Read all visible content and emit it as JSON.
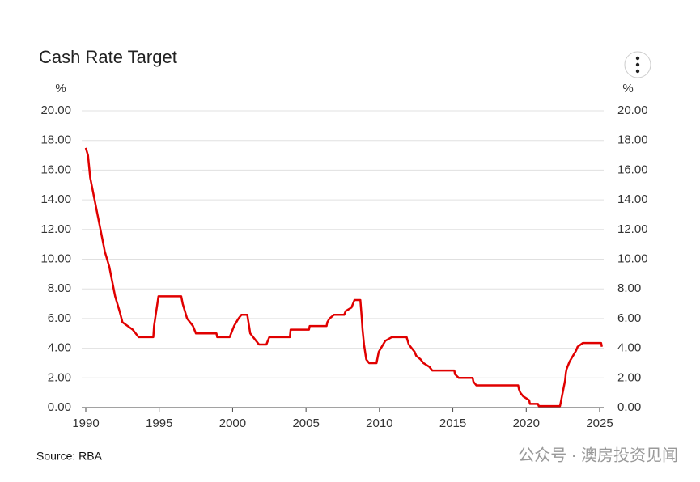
{
  "chart_data": {
    "type": "line",
    "title": "Cash Rate Target",
    "y_unit": "%",
    "y2_unit": "%",
    "source": "Source: RBA",
    "watermark": "公众号 · 澳房投资见闻",
    "xlim": [
      1990,
      2025
    ],
    "xticks": [
      1990,
      1995,
      2000,
      2005,
      2010,
      2015,
      2020,
      2025
    ],
    "ylim": [
      0,
      20
    ],
    "yticks": [
      {
        "value": 0,
        "label": "0.00"
      },
      {
        "value": 2,
        "label": "2.00"
      },
      {
        "value": 4,
        "label": "4.00"
      },
      {
        "value": 6,
        "label": "6.00"
      },
      {
        "value": 8,
        "label": "8.00"
      },
      {
        "value": 10,
        "label": "10.00"
      },
      {
        "value": 12,
        "label": "12.00"
      },
      {
        "value": 14,
        "label": "14.00"
      },
      {
        "value": 16,
        "label": "16.00"
      },
      {
        "value": 18,
        "label": "18.00"
      },
      {
        "value": 20,
        "label": "20.00"
      }
    ],
    "y2lim": [
      0,
      20
    ],
    "y2ticks": [
      {
        "value": 0,
        "label": "0.00"
      },
      {
        "value": 2,
        "label": "2.00"
      },
      {
        "value": 4,
        "label": "4.00"
      },
      {
        "value": 6,
        "label": "6.00"
      },
      {
        "value": 8,
        "label": "8.00"
      },
      {
        "value": 10,
        "label": "10.00"
      },
      {
        "value": 12,
        "label": "12.00"
      },
      {
        "value": 14,
        "label": "14.00"
      },
      {
        "value": 16,
        "label": "16.00"
      },
      {
        "value": 18,
        "label": "18.00"
      },
      {
        "value": 20,
        "label": "20.00"
      }
    ],
    "grid": true,
    "color": "#e00000",
    "x": [
      1990.0,
      1990.15,
      1990.3,
      1990.6,
      1990.8,
      1991.0,
      1991.3,
      1991.6,
      1991.8,
      1992.0,
      1992.3,
      1992.5,
      1993.2,
      1993.6,
      1994.6,
      1994.65,
      1994.8,
      1994.95,
      1996.5,
      1996.6,
      1996.9,
      1997.3,
      1997.5,
      1998.9,
      1998.95,
      1999.8,
      1999.9,
      2000.1,
      2000.4,
      2000.6,
      2001.0,
      2001.2,
      2001.6,
      2001.8,
      2002.3,
      2002.5,
      2003.9,
      2003.95,
      2005.2,
      2005.25,
      2006.4,
      2006.45,
      2006.6,
      2006.9,
      2007.6,
      2007.7,
      2008.1,
      2008.2,
      2008.3,
      2008.7,
      2008.8,
      2008.85,
      2008.95,
      2009.1,
      2009.3,
      2009.8,
      2009.9,
      2009.95,
      2010.1,
      2010.4,
      2010.85,
      2011.85,
      2012.0,
      2012.4,
      2012.5,
      2012.8,
      2013.0,
      2013.4,
      2013.6,
      2015.1,
      2015.15,
      2015.4,
      2016.35,
      2016.4,
      2016.6,
      2019.45,
      2019.5,
      2019.6,
      2019.8,
      2020.2,
      2020.25,
      2020.8,
      2020.85,
      2022.3,
      2022.35,
      2022.45,
      2022.55,
      2022.65,
      2022.7,
      2022.75,
      2022.85,
      2022.95,
      2023.1,
      2023.25,
      2023.4,
      2023.5,
      2023.85,
      2025.1,
      2025.15
    ],
    "values": [
      17.5,
      17.0,
      15.5,
      14.0,
      13.0,
      12.0,
      10.5,
      9.5,
      8.5,
      7.5,
      6.5,
      5.75,
      5.25,
      4.75,
      4.75,
      5.5,
      6.5,
      7.5,
      7.5,
      7.0,
      6.0,
      5.5,
      5.0,
      5.0,
      4.75,
      4.75,
      5.0,
      5.5,
      6.0,
      6.25,
      6.25,
      5.0,
      4.5,
      4.25,
      4.25,
      4.75,
      4.75,
      5.25,
      5.25,
      5.5,
      5.5,
      5.75,
      6.0,
      6.25,
      6.25,
      6.5,
      6.75,
      7.0,
      7.25,
      7.25,
      6.0,
      5.25,
      4.25,
      3.25,
      3.0,
      3.0,
      3.5,
      3.75,
      4.0,
      4.5,
      4.75,
      4.75,
      4.25,
      3.75,
      3.5,
      3.25,
      3.0,
      2.75,
      2.5,
      2.5,
      2.25,
      2.0,
      2.0,
      1.75,
      1.5,
      1.5,
      1.25,
      1.0,
      0.75,
      0.5,
      0.25,
      0.25,
      0.1,
      0.1,
      0.35,
      0.85,
      1.35,
      1.85,
      2.35,
      2.6,
      2.85,
      3.1,
      3.35,
      3.6,
      3.85,
      4.1,
      4.35,
      4.35,
      4.1
    ]
  }
}
